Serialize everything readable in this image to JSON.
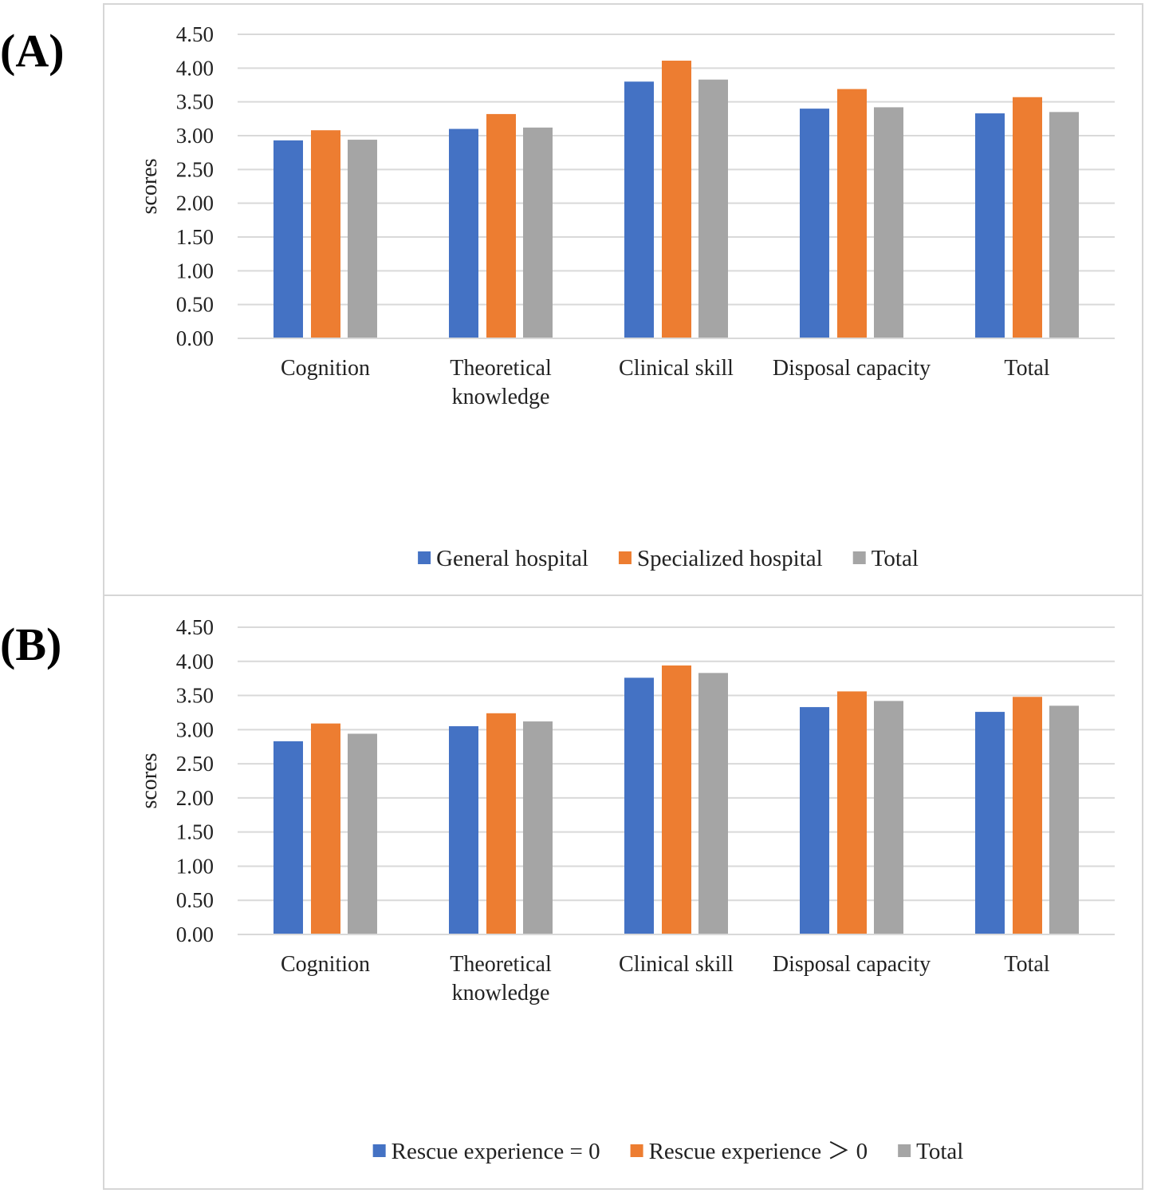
{
  "chart_data": [
    {
      "panel_label": "(A)",
      "type": "bar",
      "title": "",
      "xlabel": "",
      "ylabel": "scores",
      "ylim": [
        0,
        4.5
      ],
      "yticks": [
        "0.00",
        "0.50",
        "1.00",
        "1.50",
        "2.00",
        "2.50",
        "3.00",
        "3.50",
        "4.00",
        "4.50"
      ],
      "grid": true,
      "legend_position": "bottom",
      "categories": [
        [
          "Cognition"
        ],
        [
          "Theoretical",
          "knowledge"
        ],
        [
          "Clinical skill"
        ],
        [
          "Disposal capacity"
        ],
        [
          "Total"
        ]
      ],
      "series": [
        {
          "name": "General hospital",
          "color": "#4472c4",
          "values": [
            2.93,
            3.1,
            3.8,
            3.4,
            3.33
          ]
        },
        {
          "name": "Specialized hospital",
          "color": "#ed7d31",
          "values": [
            3.08,
            3.32,
            4.11,
            3.69,
            3.57
          ]
        },
        {
          "name": "Total",
          "color": "#a5a5a5",
          "values": [
            2.94,
            3.12,
            3.83,
            3.42,
            3.35
          ]
        }
      ]
    },
    {
      "panel_label": "(B)",
      "type": "bar",
      "title": "",
      "xlabel": "",
      "ylabel": "scores",
      "ylim": [
        0,
        4.5
      ],
      "yticks": [
        "0.00",
        "0.50",
        "1.00",
        "1.50",
        "2.00",
        "2.50",
        "3.00",
        "3.50",
        "4.00",
        "4.50"
      ],
      "grid": true,
      "legend_position": "bottom",
      "categories": [
        [
          "Cognition"
        ],
        [
          "Theoretical",
          "knowledge"
        ],
        [
          "Clinical skill"
        ],
        [
          "Disposal capacity"
        ],
        [
          "Total"
        ]
      ],
      "series": [
        {
          "name": "Rescue experience = 0",
          "color": "#4472c4",
          "values": [
            2.83,
            3.05,
            3.76,
            3.33,
            3.26
          ]
        },
        {
          "name": "Rescue experience ＞ 0",
          "color": "#ed7d31",
          "values": [
            3.09,
            3.24,
            3.94,
            3.56,
            3.48
          ]
        },
        {
          "name": "Total",
          "color": "#a5a5a5",
          "values": [
            2.94,
            3.12,
            3.83,
            3.42,
            3.35
          ]
        }
      ]
    }
  ]
}
